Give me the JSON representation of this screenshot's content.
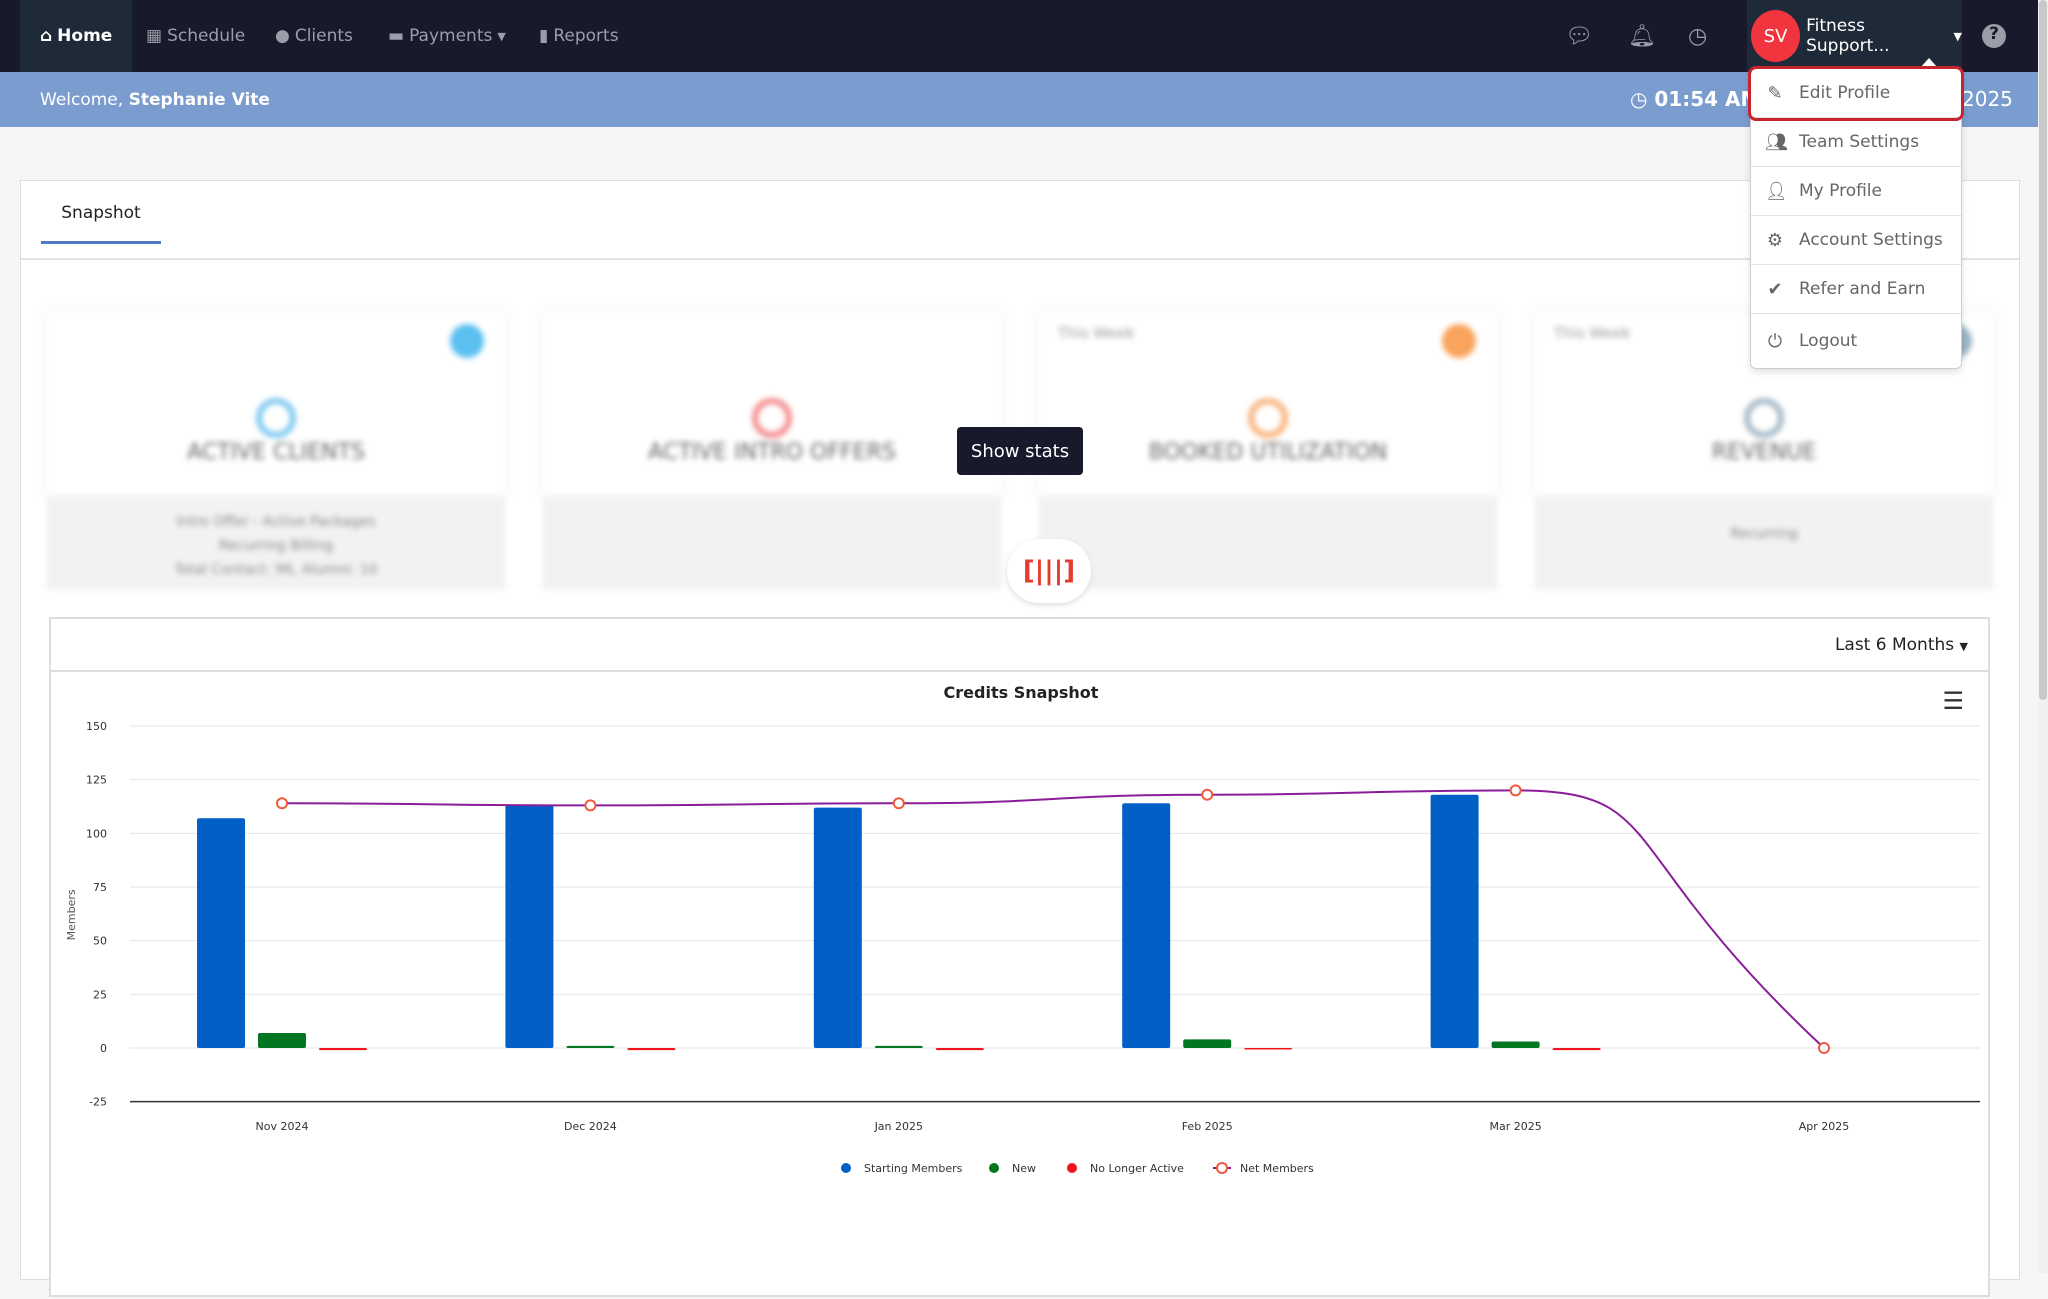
{
  "nav": {
    "items": [
      {
        "label": "Home",
        "icon": "home-icon"
      },
      {
        "label": "Schedule",
        "icon": "calendar-icon"
      },
      {
        "label": "Clients",
        "icon": "user-icon"
      },
      {
        "label": "Payments",
        "icon": "credit-card-icon"
      },
      {
        "label": "Reports",
        "icon": "bar-chart-icon"
      }
    ],
    "profile": {
      "initials": "SV",
      "name": "Fitness Support..."
    }
  },
  "welcome": {
    "prefix": "Welcome, ",
    "name": "Stephanie Vite",
    "time": "01:54 AM",
    "date_fragment": "2025"
  },
  "dropdown": [
    {
      "label": "Edit Profile",
      "icon": "pencil-icon"
    },
    {
      "label": "Team Settings",
      "icon": "users-icon"
    },
    {
      "label": "My Profile",
      "icon": "user-icon"
    },
    {
      "label": "Account Settings",
      "icon": "gear-icon"
    },
    {
      "label": "Refer and Earn",
      "icon": "check-icon"
    },
    {
      "label": "Logout",
      "icon": "power-icon"
    }
  ],
  "tabs": {
    "snapshot": "Snapshot"
  },
  "cards": [
    {
      "title": "ACTIVE CLIENTS",
      "lines": [
        "Intro Offer - Active Packages",
        "Recurring Billing",
        "Total Contact: 96, Alumni: 10"
      ]
    },
    {
      "title": "ACTIVE INTRO OFFERS",
      "lines": []
    },
    {
      "title": "BOOKED UTILIZATION",
      "week": "This Week",
      "lines": []
    },
    {
      "title": "REVENUE",
      "week": "This Week",
      "lines": [
        "Recurring"
      ]
    }
  ],
  "tooltip": "Show stats",
  "chart_header": {
    "range": "Last 6 Months"
  },
  "chart_data": {
    "type": "bar",
    "title": "Credits Snapshot",
    "ylabel": "Members",
    "xlabel": "",
    "ylim": [
      -25,
      150
    ],
    "yticks": [
      150,
      125,
      100,
      75,
      50,
      25,
      0,
      -25
    ],
    "grid": true,
    "legend": "bottom",
    "categories": [
      "Nov 2024",
      "Dec 2024",
      "Jan 2025",
      "Feb 2025",
      "Mar 2025",
      "Apr 2025"
    ],
    "series": [
      {
        "name": "Starting Members",
        "type": "bar",
        "color": "#0060c6",
        "values": [
          107,
          113,
          112,
          114,
          118,
          null
        ]
      },
      {
        "name": "New",
        "type": "bar",
        "color": "#017520",
        "values": [
          7,
          1,
          1,
          4,
          3,
          null
        ]
      },
      {
        "name": "No Longer Active",
        "type": "bar",
        "color": "#f0141e",
        "values": [
          -1,
          -1,
          -1,
          0,
          -1,
          null
        ]
      },
      {
        "name": "Net Members",
        "type": "line",
        "color": "#8b1d9b",
        "marker": "#ef5a3c",
        "values": [
          114,
          113,
          114,
          118,
          120,
          0
        ]
      }
    ]
  }
}
